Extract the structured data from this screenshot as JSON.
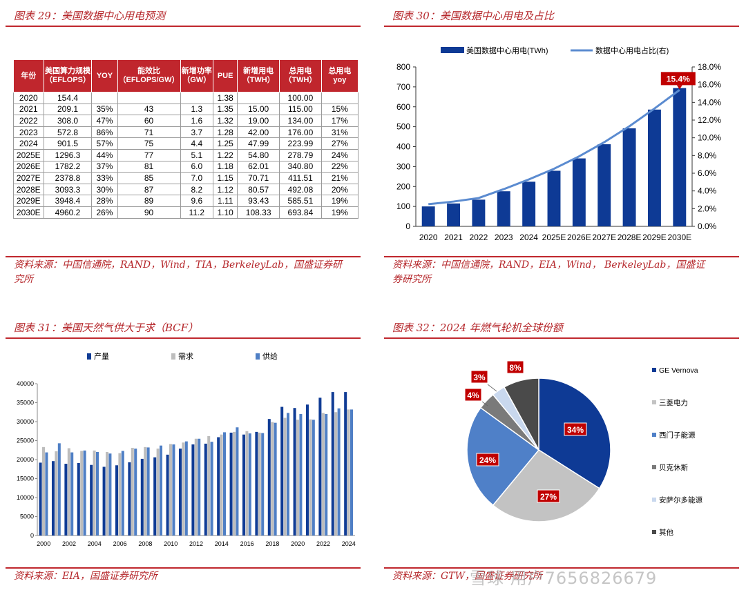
{
  "fig29": {
    "title": "图表 29：美国数据中心用电预测",
    "headers": [
      "年份",
      "美国算力规模（EFLOPS）",
      "YOY",
      "能效比（EFLOPS/GW）",
      "新增功率（GW）",
      "PUE",
      "新增用电（TWH）",
      "总用电（TWH）",
      "总用电yoy"
    ],
    "rows": [
      [
        "2020",
        "154.4",
        "",
        "",
        "",
        "1.38",
        "",
        "100.00",
        ""
      ],
      [
        "2021",
        "209.1",
        "35%",
        "43",
        "1.3",
        "1.35",
        "15.00",
        "115.00",
        "15%"
      ],
      [
        "2022",
        "308.0",
        "47%",
        "60",
        "1.6",
        "1.32",
        "19.00",
        "134.00",
        "17%"
      ],
      [
        "2023",
        "572.8",
        "86%",
        "71",
        "3.7",
        "1.28",
        "42.00",
        "176.00",
        "31%"
      ],
      [
        "2024",
        "901.5",
        "57%",
        "75",
        "4.4",
        "1.25",
        "47.99",
        "223.99",
        "27%"
      ],
      [
        "2025E",
        "1296.3",
        "44%",
        "77",
        "5.1",
        "1.22",
        "54.80",
        "278.79",
        "24%"
      ],
      [
        "2026E",
        "1782.2",
        "37%",
        "81",
        "6.0",
        "1.18",
        "62.01",
        "340.80",
        "22%"
      ],
      [
        "2027E",
        "2378.8",
        "33%",
        "85",
        "7.0",
        "1.15",
        "70.71",
        "411.51",
        "21%"
      ],
      [
        "2028E",
        "3093.3",
        "30%",
        "87",
        "8.2",
        "1.12",
        "80.57",
        "492.08",
        "20%"
      ],
      [
        "2029E",
        "3948.4",
        "28%",
        "89",
        "9.6",
        "1.11",
        "93.43",
        "585.51",
        "19%"
      ],
      [
        "2030E",
        "4960.2",
        "26%",
        "90",
        "11.2",
        "1.10",
        "108.33",
        "693.84",
        "19%"
      ]
    ],
    "source_line1": "资料来源：中国信通院，RAND，Wind，TIA，BerkeleyLab，国盛证券研",
    "source_line2": "究所"
  },
  "fig30": {
    "title": "图表 30：美国数据中心用电及占比",
    "source_line1": "资料来源：中国信通院，RAND，EIA，Wind， BerkeleyLab，国盛证",
    "source_line2": "券研究所",
    "chart_data": {
      "type": "bar",
      "categories": [
        "2020",
        "2021",
        "2022",
        "2023",
        "2024",
        "2025E",
        "2026E",
        "2027E",
        "2028E",
        "2029E",
        "2030E"
      ],
      "series": [
        {
          "name": "美国数据中心用电(TWh)",
          "kind": "bar",
          "axis": "left",
          "color": "#0e3a95",
          "values": [
            100,
            115,
            134,
            176,
            224,
            279,
            341,
            412,
            492,
            586,
            694
          ]
        },
        {
          "name": "数据中心用电占比(右)",
          "kind": "line",
          "axis": "right",
          "color": "#5b8bd0",
          "values": [
            2.5,
            2.8,
            3.2,
            4.2,
            5.3,
            6.5,
            7.9,
            9.5,
            11.3,
            13.3,
            15.4
          ]
        }
      ],
      "y_left": {
        "min": 0,
        "max": 800,
        "step": 100,
        "ticks": [
          "0",
          "100",
          "200",
          "300",
          "400",
          "500",
          "600",
          "700",
          "800"
        ]
      },
      "y_right": {
        "min": 0,
        "max": 18,
        "step": 2,
        "ticks": [
          "0.0%",
          "2.0%",
          "4.0%",
          "6.0%",
          "8.0%",
          "10.0%",
          "12.0%",
          "14.0%",
          "16.0%",
          "18.0%"
        ]
      },
      "annotation": {
        "text": "15.4%",
        "category": "2030E",
        "color": "#c00000"
      },
      "legend": "top",
      "grid": false
    }
  },
  "fig31": {
    "title": "图表 31：美国天然气供大于求（BCF）",
    "source": "资料来源：EIA，国盛证券研究所",
    "chart_data": {
      "type": "bar",
      "categories": [
        "2000",
        "2001",
        "2002",
        "2003",
        "2004",
        "2005",
        "2006",
        "2007",
        "2008",
        "2009",
        "2010",
        "2011",
        "2012",
        "2013",
        "2014",
        "2015",
        "2016",
        "2017",
        "2018",
        "2019",
        "2020",
        "2021",
        "2022",
        "2023",
        "2024"
      ],
      "x_tick_labels": [
        "2000",
        "2002",
        "2004",
        "2006",
        "2008",
        "2010",
        "2012",
        "2014",
        "2016",
        "2018",
        "2020",
        "2022",
        "2024"
      ],
      "series": [
        {
          "name": "产量",
          "color": "#103c95",
          "values": [
            19200,
            19600,
            18900,
            19100,
            18600,
            18100,
            18500,
            19300,
            20200,
            20600,
            21300,
            22900,
            24000,
            24200,
            25900,
            27100,
            26600,
            27300,
            30700,
            33900,
            33600,
            34500,
            36300,
            37800,
            37800
          ]
        },
        {
          "name": "需求",
          "color": "#bdbdbd",
          "values": [
            23300,
            22200,
            23000,
            22300,
            22400,
            22000,
            21700,
            23100,
            23300,
            22900,
            24100,
            24500,
            25500,
            26200,
            26600,
            27300,
            27500,
            27100,
            29900,
            31000,
            30500,
            30600,
            32300,
            32500,
            33200
          ]
        },
        {
          "name": "供给",
          "color": "#4f7fc5",
          "values": [
            21900,
            24300,
            21900,
            22400,
            22000,
            21600,
            22300,
            22900,
            23200,
            23700,
            24000,
            24800,
            25500,
            24700,
            27200,
            28500,
            26900,
            27000,
            29700,
            32300,
            32000,
            30500,
            32000,
            33500,
            33200
          ]
        }
      ],
      "ylim": [
        0,
        40000
      ],
      "y_ticks": [
        "0",
        "5000",
        "10000",
        "15000",
        "20000",
        "25000",
        "30000",
        "35000",
        "40000"
      ],
      "legend": "top",
      "grid": false
    }
  },
  "fig32": {
    "title": "图表 32：2024 年燃气轮机全球份额",
    "source": "资料来源：GTW，国盛证券研究所",
    "chart_data": {
      "type": "pie",
      "slices": [
        {
          "name": "GE Vernova",
          "value": 34,
          "label": "34%",
          "color": "#0e3a95"
        },
        {
          "name": "三菱电力",
          "value": 27,
          "label": "27%",
          "color": "#c3c3c3"
        },
        {
          "name": "西门子能源",
          "value": 24,
          "label": "24%",
          "color": "#4f80c8"
        },
        {
          "name": "贝克休斯",
          "value": 4,
          "label": "4%",
          "color": "#7a7a7a"
        },
        {
          "name": "安萨尔多能源",
          "value": 3,
          "label": "3%",
          "color": "#c9d8ee"
        },
        {
          "name": "其他",
          "value": 8,
          "label": "8%",
          "color": "#4a4a4a"
        }
      ],
      "label_color": "#c00000",
      "legend": "right"
    }
  },
  "watermark": "雪球 用户7656826679"
}
